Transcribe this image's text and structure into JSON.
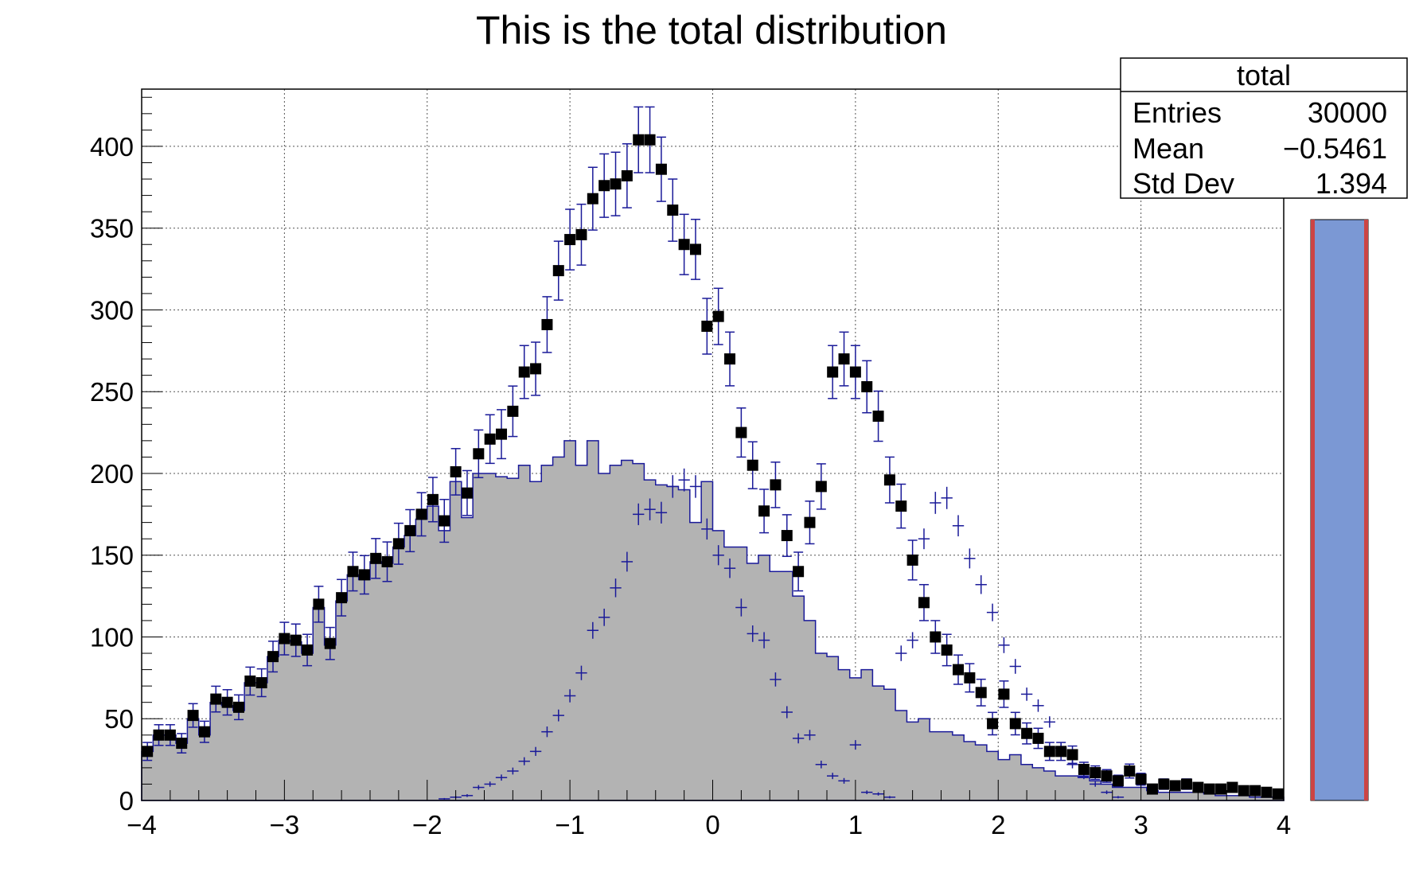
{
  "chart_data": {
    "type": "bar",
    "title": "This is the total distribution",
    "xlabel": "",
    "ylabel": "",
    "xlim": [
      -4,
      4
    ],
    "ylim": [
      0,
      435
    ],
    "grid": true,
    "x_ticks": [
      -4,
      -3,
      -2,
      -1,
      0,
      1,
      2,
      3,
      4
    ],
    "x_tick_labels": [
      "−4",
      "−3",
      "−2",
      "−1",
      "0",
      "1",
      "2",
      "3",
      "4"
    ],
    "y_ticks": [
      0,
      50,
      100,
      150,
      200,
      250,
      300,
      350,
      400
    ],
    "y_tick_labels": [
      "0",
      "50",
      "100",
      "150",
      "200",
      "250",
      "300",
      "350",
      "400"
    ],
    "bin_width": 0.08,
    "colors": {
      "filled_histogram": "#b3b3b3",
      "outline": "#1a1a99",
      "markers": "#000000",
      "side_bar_fill": "#7b98d4",
      "side_bar_edge": "#cc4444"
    },
    "series": [
      {
        "style": "filled-histogram",
        "values": [
          30,
          40,
          40,
          35,
          50,
          40,
          60,
          58,
          55,
          72,
          72,
          88,
          98,
          97,
          90,
          118,
          95,
          122,
          138,
          135,
          146,
          145,
          155,
          162,
          172,
          180,
          165,
          195,
          173,
          200,
          200,
          198,
          197,
          205,
          195,
          205,
          210,
          220,
          205,
          220,
          200,
          205,
          208,
          206,
          196,
          193,
          192,
          190,
          170,
          195,
          165,
          155,
          155,
          145,
          150,
          140,
          140,
          125,
          110,
          90,
          88,
          80,
          75,
          80,
          70,
          68,
          55,
          48,
          50,
          42,
          42,
          40,
          36,
          34,
          30,
          25,
          28,
          22,
          20,
          18,
          15,
          15,
          14,
          12,
          10,
          8,
          8,
          8,
          6,
          5,
          5,
          5,
          5,
          4,
          3,
          3,
          3,
          2,
          2,
          2
        ]
      },
      {
        "style": "crosses",
        "values": [
          0,
          0,
          0,
          0,
          0,
          0,
          0,
          0,
          0,
          0,
          0,
          0,
          0,
          0,
          0,
          0,
          0,
          0,
          0,
          0,
          0,
          0,
          0,
          0,
          0,
          0,
          1,
          2,
          3,
          8,
          10,
          14,
          18,
          24,
          30,
          42,
          52,
          64,
          78,
          104,
          112,
          130,
          146,
          175,
          178,
          176,
          192,
          196,
          192,
          166,
          150,
          142,
          118,
          102,
          98,
          74,
          54,
          38,
          40,
          22,
          15,
          12,
          34,
          5,
          4,
          2,
          0,
          0,
          0,
          0,
          0,
          0,
          0,
          0,
          0,
          0,
          0,
          0,
          0,
          0,
          0,
          0,
          0,
          0,
          0,
          0,
          0,
          0,
          0,
          0,
          0,
          0,
          0,
          0,
          0,
          0,
          0,
          0,
          0,
          0
        ]
      },
      {
        "style": "crosses",
        "values": [
          0,
          0,
          0,
          0,
          0,
          0,
          0,
          0,
          0,
          0,
          0,
          0,
          0,
          0,
          0,
          0,
          0,
          0,
          0,
          0,
          0,
          0,
          0,
          0,
          0,
          0,
          0,
          0,
          0,
          0,
          0,
          0,
          0,
          0,
          0,
          0,
          0,
          0,
          0,
          0,
          0,
          0,
          0,
          0,
          0,
          0,
          0,
          0,
          0,
          0,
          0,
          0,
          0,
          0,
          0,
          0,
          0,
          0,
          0,
          0,
          0,
          0,
          0,
          0,
          0,
          0,
          90,
          98,
          160,
          182,
          185,
          168,
          148,
          132,
          115,
          95,
          82,
          65,
          58,
          48,
          32,
          22,
          15,
          10,
          5,
          2,
          0,
          0,
          0,
          0,
          0,
          0,
          0,
          0,
          0,
          0,
          0,
          0,
          0,
          0
        ]
      },
      {
        "style": "markers-with-errors",
        "values": [
          30,
          40,
          40,
          35,
          52,
          42,
          62,
          60,
          57,
          73,
          72,
          88,
          99,
          98,
          92,
          120,
          96,
          124,
          140,
          138,
          148,
          146,
          157,
          165,
          175,
          184,
          171,
          201,
          188,
          212,
          221,
          224,
          238,
          262,
          264,
          291,
          324,
          343,
          346,
          368,
          376,
          377,
          382,
          404,
          404,
          386,
          361,
          340,
          337,
          290,
          296,
          270,
          225,
          205,
          177,
          193,
          162,
          140,
          170,
          192,
          262,
          270,
          262,
          253,
          235,
          196,
          180,
          147,
          121,
          100,
          92,
          80,
          75,
          66,
          47,
          65,
          47,
          41,
          38,
          30,
          30,
          28,
          19,
          17,
          15,
          12,
          18,
          13,
          7,
          10,
          9,
          10,
          8,
          7,
          7,
          8,
          6,
          6,
          5,
          4
        ]
      }
    ]
  },
  "stats_box": {
    "title": "total",
    "rows": [
      {
        "label": "Entries",
        "value": "30000"
      },
      {
        "label": "Mean",
        "value": "−0.5461"
      },
      {
        "label": "Std Dev",
        "value": "1.394"
      }
    ]
  }
}
